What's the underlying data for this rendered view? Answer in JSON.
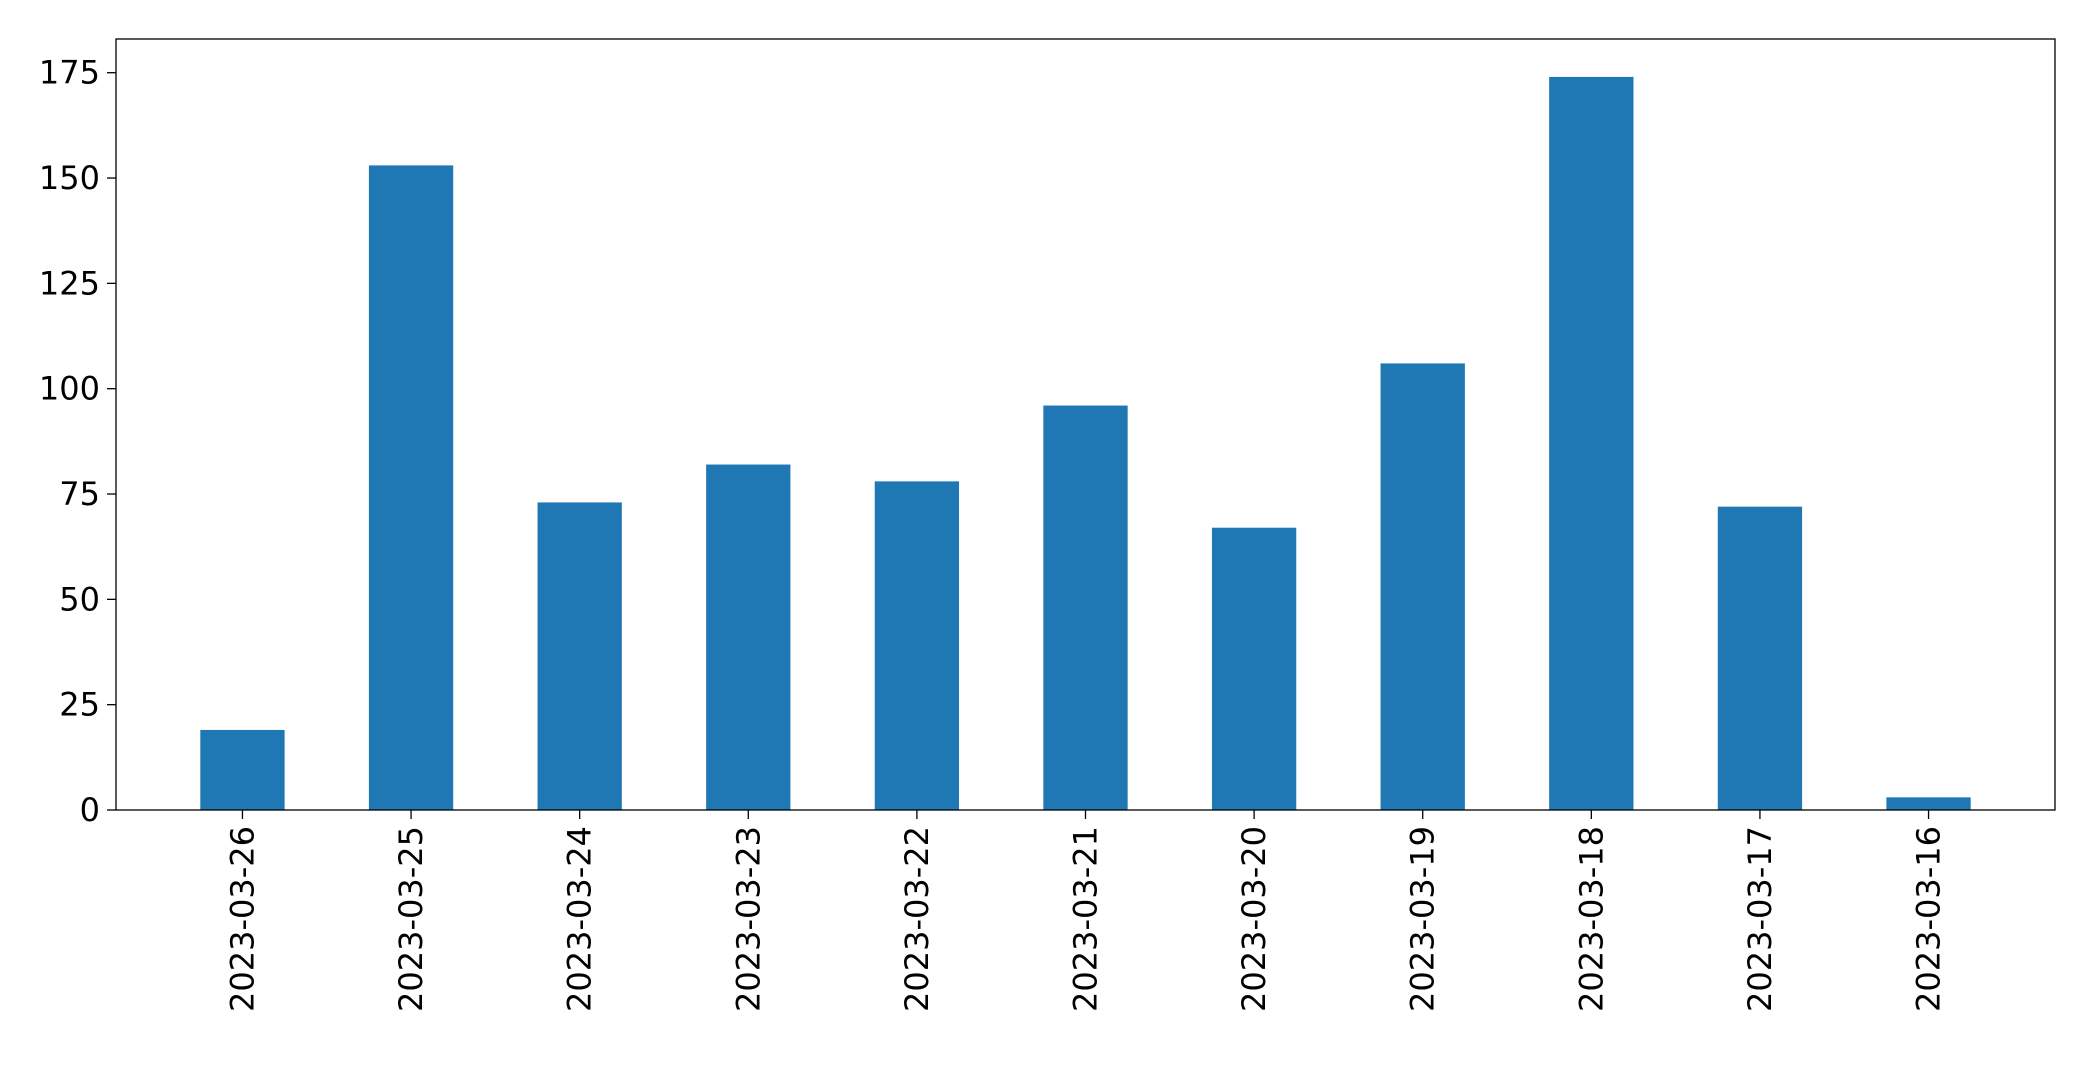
{
  "chart_data": {
    "type": "bar",
    "title": "",
    "xlabel": "",
    "ylabel": "",
    "categories": [
      "2023-03-26",
      "2023-03-25",
      "2023-03-24",
      "2023-03-23",
      "2023-03-22",
      "2023-03-21",
      "2023-03-20",
      "2023-03-19",
      "2023-03-18",
      "2023-03-17",
      "2023-03-16"
    ],
    "series": [
      {
        "values": [
          19,
          153,
          73,
          82,
          78,
          96,
          67,
          106,
          174,
          72,
          3
        ]
      }
    ],
    "ylim": [
      0,
      183
    ],
    "yticks": [
      0,
      25,
      50,
      75,
      100,
      125,
      150,
      175
    ],
    "grid": false,
    "legend": "none",
    "bar_color": "#1f77b4"
  }
}
